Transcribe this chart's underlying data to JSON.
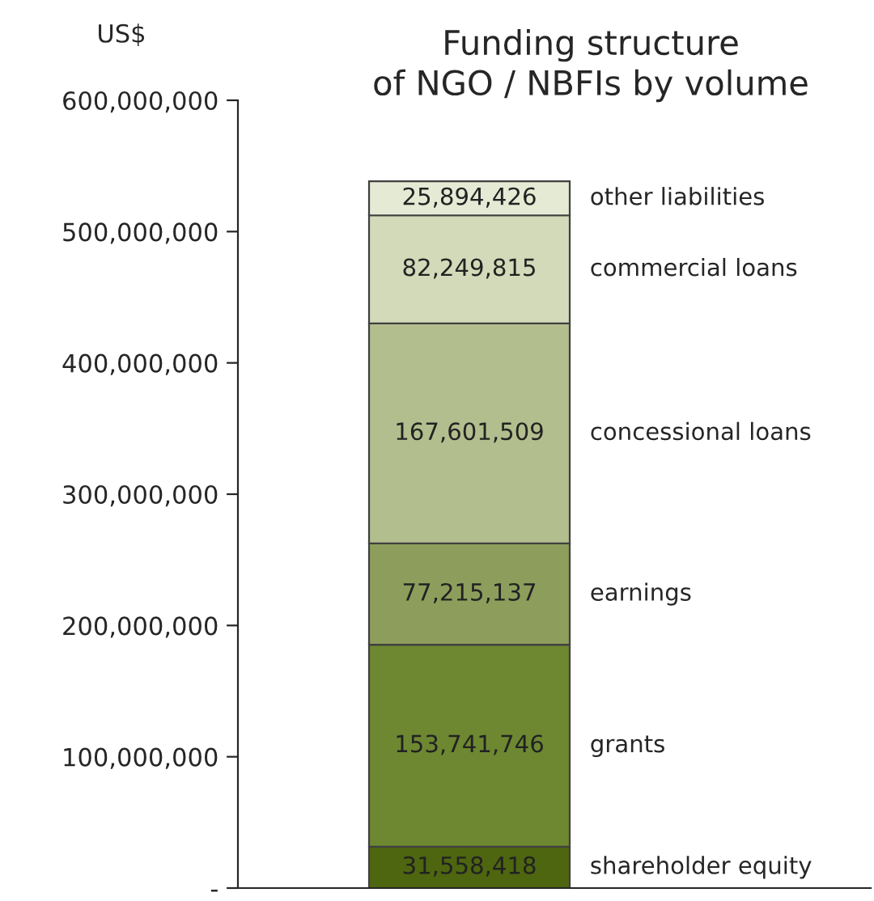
{
  "chart_data": {
    "type": "bar",
    "title": "Funding structure\nof NGO / NBFIs by volume",
    "ylabel": "US$",
    "stacked": true,
    "categories": [
      null
    ],
    "series": [
      {
        "name": "shareholder equity",
        "color": "#4e6610",
        "values": [
          31558418
        ],
        "value_labels": [
          "31,558,418"
        ]
      },
      {
        "name": "grants",
        "color": "#6e8832",
        "values": [
          153741746
        ],
        "value_labels": [
          "153,741,746"
        ]
      },
      {
        "name": "earnings",
        "color": "#8d9e5c",
        "values": [
          77215137
        ],
        "value_labels": [
          "77,215,137"
        ]
      },
      {
        "name": "concessional loans",
        "color": "#b3be8e",
        "values": [
          167601509
        ],
        "value_labels": [
          "167,601,509"
        ]
      },
      {
        "name": "commercial loans",
        "color": "#d3dab9",
        "values": [
          82249815
        ],
        "value_labels": [
          "82,249,815"
        ]
      },
      {
        "name": "other liabilities",
        "color": "#e5ead5",
        "values": [
          25894426
        ],
        "value_labels": [
          "25,894,426"
        ]
      }
    ],
    "ylim": [
      0,
      600000000
    ],
    "yticks": [
      {
        "value": 0,
        "label": "-"
      },
      {
        "value": 100000000,
        "label": "100,000,000"
      },
      {
        "value": 200000000,
        "label": "200,000,000"
      },
      {
        "value": 300000000,
        "label": "300,000,000"
      },
      {
        "value": 400000000,
        "label": "400,000,000"
      },
      {
        "value": 500000000,
        "label": "500,000,000"
      },
      {
        "value": 600000000,
        "label": "600,000,000"
      }
    ],
    "grid": false,
    "legend": false
  }
}
